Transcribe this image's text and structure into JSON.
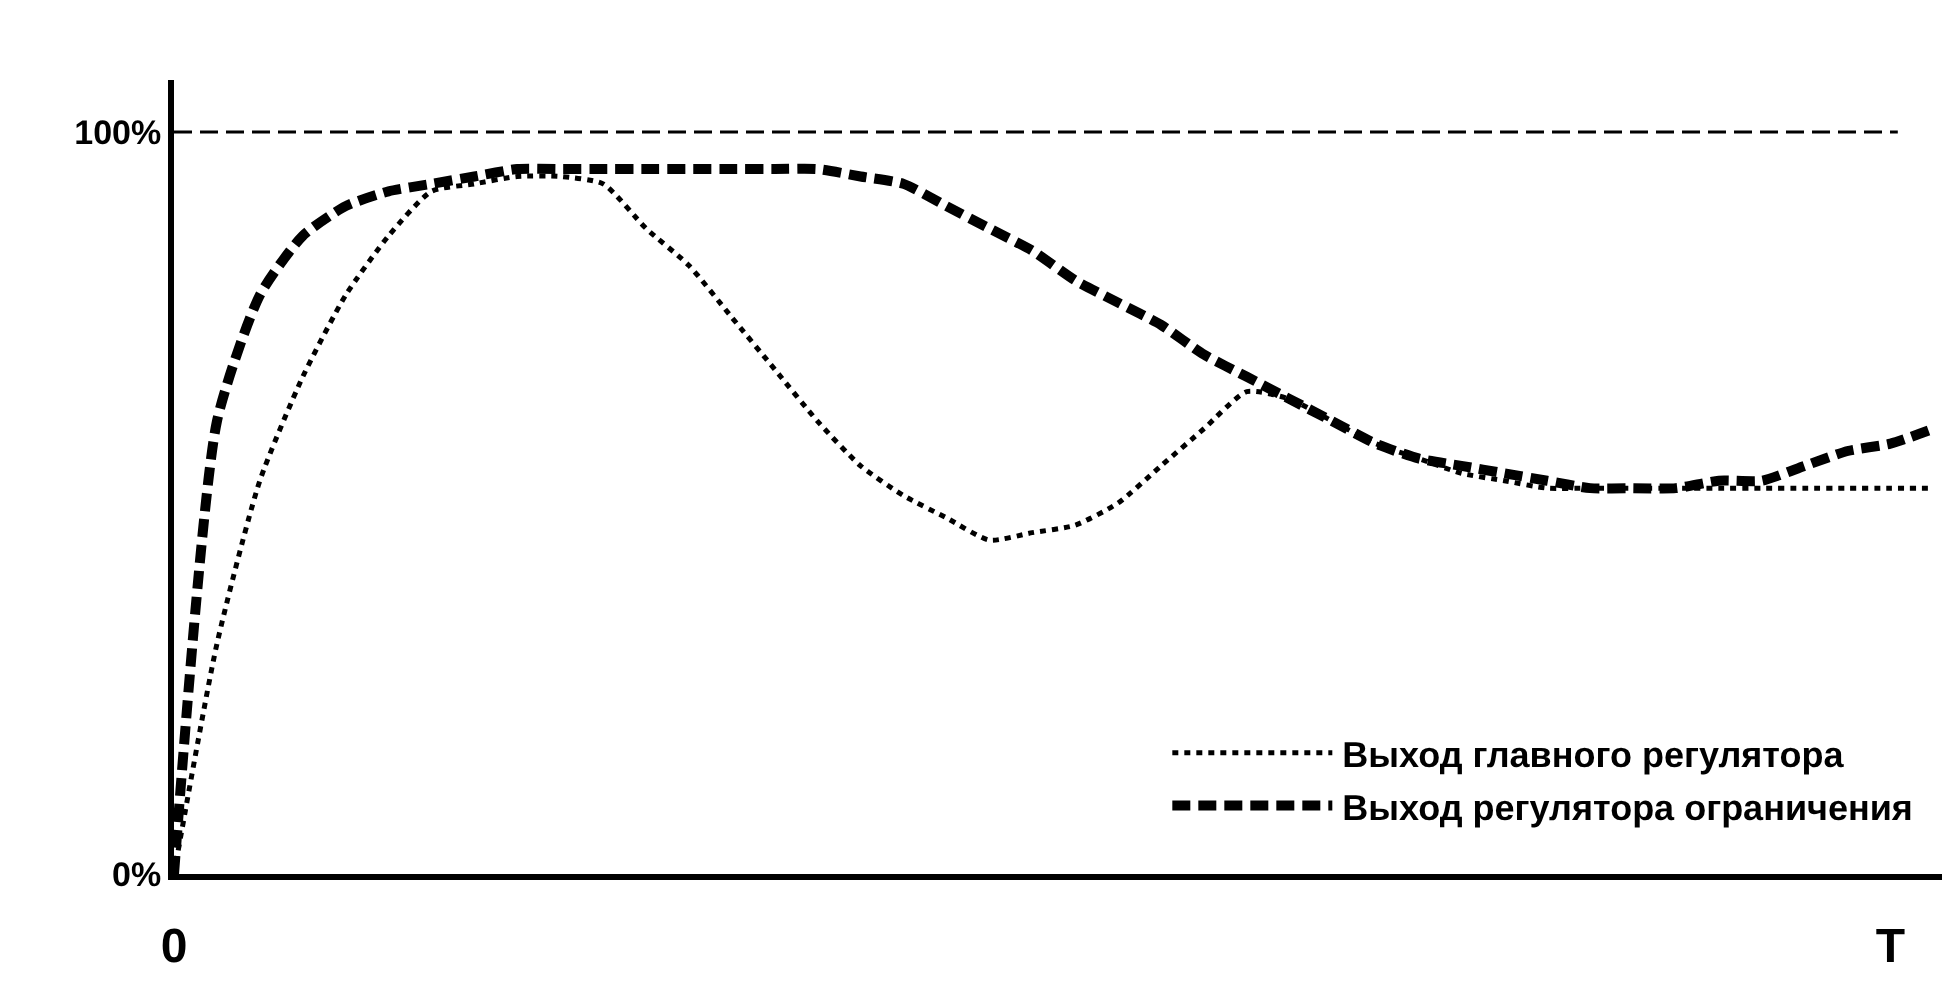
{
  "chart_data": {
    "type": "line",
    "categories": [
      "0",
      null,
      null,
      null,
      null,
      null,
      null,
      null,
      null,
      null,
      null,
      null,
      null,
      null,
      null,
      null,
      null,
      null,
      null,
      null,
      null,
      null,
      null,
      null,
      null,
      null,
      null,
      null,
      null,
      null,
      null,
      null,
      null,
      null,
      null,
      null,
      null,
      null,
      null,
      null,
      "T",
      null
    ],
    "series": [
      {
        "name": "Выход главного регулятора",
        "color": "#000000",
        "line_style": "dotted",
        "values": [
          0,
          31,
          53,
          67,
          78,
          86,
          92,
          93,
          94,
          94,
          93,
          87,
          82,
          75,
          68,
          61,
          55,
          51,
          48,
          45,
          46,
          47,
          50,
          55,
          60,
          65,
          64,
          61,
          58,
          56,
          54,
          53,
          52,
          52,
          52,
          52,
          52,
          52,
          52,
          52,
          52,
          52
        ]
      },
      {
        "name": "Выход регулятора ограничения",
        "color": "#000000",
        "line_style": "dashed",
        "values": [
          0,
          61,
          78,
          86,
          90,
          92,
          93,
          94,
          95,
          95,
          95,
          95,
          95,
          95,
          95,
          95,
          94,
          93,
          90,
          87,
          84,
          80,
          77,
          74,
          70,
          67,
          64,
          61,
          58,
          56,
          55,
          54,
          53,
          52,
          52,
          52,
          53,
          53,
          55,
          57,
          58,
          60
        ]
      }
    ],
    "ylim": [
      0,
      107
    ],
    "yticks": [
      {
        "value": 0,
        "label": "0%"
      },
      {
        "value": 100,
        "label": "100%"
      }
    ],
    "ref_lines": [
      {
        "axis": "y",
        "value": 100,
        "color": "#000000",
        "line_style": "dashed"
      }
    ],
    "legend": "bottom right",
    "marker": "none"
  }
}
